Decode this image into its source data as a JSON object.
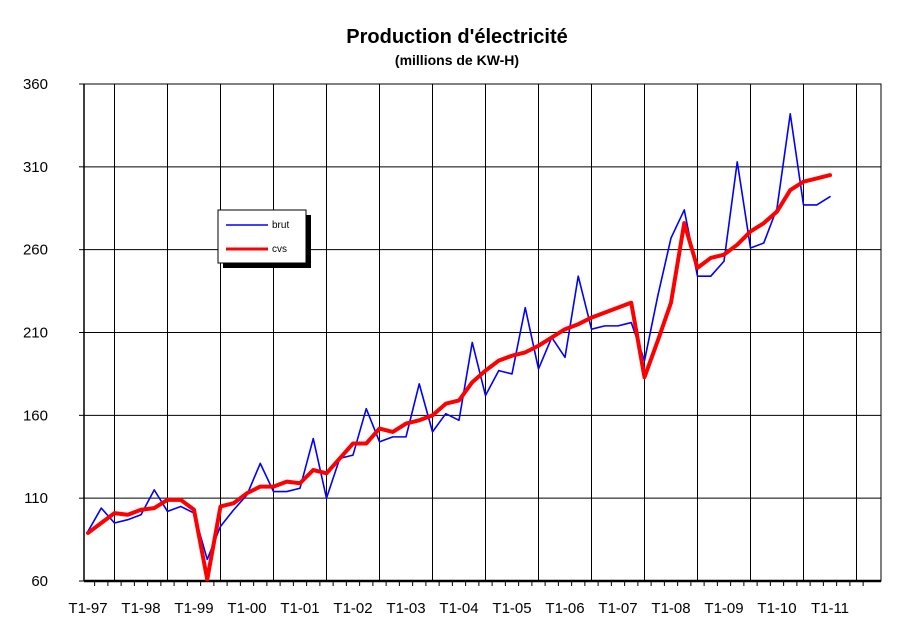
{
  "chart_data": {
    "type": "line",
    "title": "Production d'électricité",
    "subtitle": "(millions de KW-H)",
    "xlabel": "",
    "ylabel": "",
    "ylim": [
      60,
      360
    ],
    "yticks": [
      60,
      110,
      160,
      210,
      260,
      310,
      360
    ],
    "grid": true,
    "legend_position": "left",
    "xtick_labels": [
      "T1-97",
      "T1-98",
      "T1-99",
      "T1-00",
      "T1-01",
      "T1-02",
      "T1-03",
      "T1-04",
      "T1-05",
      "T1-06",
      "T1-07",
      "T1-08",
      "T1-09",
      "T1-10",
      "T1-11"
    ],
    "series": [
      {
        "name": "brut",
        "color": "#0000ff",
        "values": [
          90,
          104,
          95,
          97,
          100,
          115,
          102,
          105,
          101,
          73,
          93,
          103,
          112,
          131,
          114,
          114,
          116,
          146,
          110,
          134,
          136,
          164,
          144,
          147,
          147,
          179,
          150,
          161,
          157,
          204,
          172,
          187,
          185,
          225,
          188,
          207,
          195,
          244,
          212,
          214,
          214,
          216,
          193,
          232,
          267,
          284,
          244,
          244,
          253,
          313,
          261,
          264,
          285,
          342,
          287,
          287,
          292
        ]
      },
      {
        "name": "cvs",
        "color": "#ff0000",
        "values": [
          89,
          95,
          101,
          100,
          103,
          104,
          109,
          109,
          103,
          61,
          105,
          107,
          113,
          117,
          117,
          120,
          119,
          127,
          125,
          134,
          143,
          143,
          152,
          150,
          155,
          157,
          160,
          167,
          169,
          180,
          187,
          193,
          196,
          198,
          202,
          207,
          212,
          215,
          219,
          222,
          225,
          228,
          183,
          205,
          228,
          276,
          249,
          255,
          257,
          263,
          271,
          276,
          283,
          296,
          301,
          303,
          305
        ]
      }
    ]
  }
}
